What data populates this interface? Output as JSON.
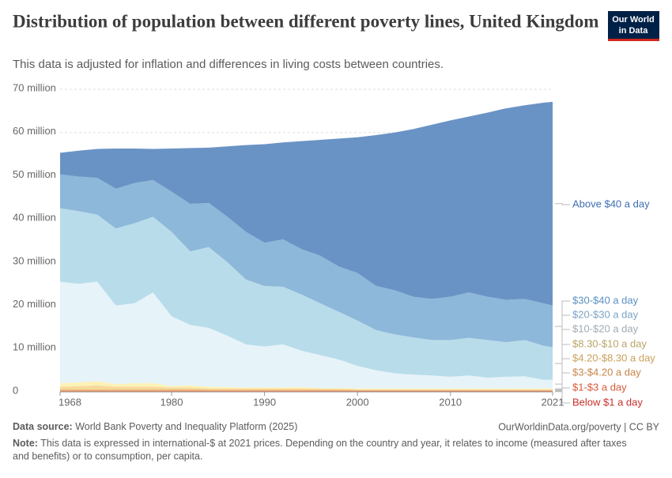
{
  "chart_data": {
    "type": "stacked-area",
    "title": "Distribution of population between different poverty lines, United Kingdom",
    "subtitle": "This data is adjusted for inflation and differences in living costs between countries.",
    "logo": [
      "Our World",
      "in Data"
    ],
    "source_label": "Data source:",
    "source": "World Bank Poverty and Inequality Platform (2025)",
    "url": "OurWorldinData.org/poverty | CC BY",
    "note_label": "Note:",
    "note": [
      "This data is expressed in international-$ at 2021 prices. Depending on the country and year, it relates to income (measured after taxes",
      "and benefits) or to consumption, per capita."
    ],
    "x": [
      1968,
      1970,
      1972,
      1974,
      1976,
      1978,
      1980,
      1982,
      1984,
      1986,
      1988,
      1990,
      1992,
      1994,
      1996,
      1998,
      2000,
      2002,
      2004,
      2006,
      2008,
      2010,
      2012,
      2014,
      2016,
      2018,
      2020,
      2021
    ],
    "xlim": [
      1968,
      2021
    ],
    "xticks": [
      1968,
      1980,
      1990,
      2000,
      2010,
      2021
    ],
    "ylim": [
      0,
      70
    ],
    "yticks": [
      {
        "value": 0,
        "label": "0"
      },
      {
        "value": 10,
        "label": "10 million"
      },
      {
        "value": 20,
        "label": "20 million"
      },
      {
        "value": 30,
        "label": "30 million"
      },
      {
        "value": 40,
        "label": "40 million"
      },
      {
        "value": 50,
        "label": "50 million"
      },
      {
        "value": 60,
        "label": "60 million"
      },
      {
        "value": 70,
        "label": "70 million"
      }
    ],
    "grid": true,
    "series": [
      {
        "name": "Below $1 a day",
        "color": "#d3402c",
        "label_color": "#c8302a",
        "values": [
          0.1,
          0.1,
          0.1,
          0.1,
          0.1,
          0.1,
          0.1,
          0.1,
          0.1,
          0.1,
          0.1,
          0.1,
          0.1,
          0.1,
          0.1,
          0.1,
          0.1,
          0.1,
          0.1,
          0.1,
          0.1,
          0.1,
          0.1,
          0.1,
          0.1,
          0.1,
          0.1,
          0.1
        ]
      },
      {
        "name": "$1-$3 a day",
        "color": "#e8845a",
        "label_color": "#d85a3a",
        "values": [
          0.2,
          0.2,
          0.2,
          0.2,
          0.2,
          0.2,
          0.2,
          0.2,
          0.2,
          0.2,
          0.2,
          0.2,
          0.2,
          0.2,
          0.2,
          0.2,
          0.2,
          0.2,
          0.2,
          0.2,
          0.2,
          0.2,
          0.2,
          0.2,
          0.2,
          0.2,
          0.2,
          0.2
        ]
      },
      {
        "name": "$3-$4.20 a day",
        "color": "#f0b777",
        "label_color": "#c8864a",
        "values": [
          0.3,
          0.3,
          0.3,
          0.3,
          0.3,
          0.3,
          0.3,
          0.3,
          0.2,
          0.2,
          0.2,
          0.2,
          0.2,
          0.2,
          0.2,
          0.2,
          0.1,
          0.1,
          0.1,
          0.1,
          0.1,
          0.1,
          0.1,
          0.1,
          0.1,
          0.1,
          0.1,
          0.1
        ]
      },
      {
        "name": "$4.20-$8.30 a day",
        "color": "#f6d99a",
        "label_color": "#c9a15a",
        "values": [
          0.6,
          0.7,
          0.9,
          0.6,
          0.6,
          0.6,
          0.4,
          0.4,
          0.3,
          0.3,
          0.3,
          0.3,
          0.3,
          0.3,
          0.2,
          0.2,
          0.2,
          0.2,
          0.2,
          0.2,
          0.2,
          0.2,
          0.2,
          0.2,
          0.2,
          0.2,
          0.2,
          0.2
        ]
      },
      {
        "name": "$8.30-$10 a day",
        "color": "#fdf2b6",
        "label_color": "#b8a568",
        "values": [
          0.8,
          0.9,
          1.0,
          0.6,
          0.8,
          0.8,
          0.3,
          0.5,
          0.4,
          0.3,
          0.2,
          0.2,
          0.2,
          0.3,
          0.2,
          0.2,
          0.2,
          0.2,
          0.2,
          0.2,
          0.2,
          0.2,
          0.2,
          0.2,
          0.2,
          0.2,
          0.2,
          0.2
        ]
      },
      {
        "name": "$10-$20 a day",
        "color": "#e6f3f9",
        "label_color": "#a0aab3",
        "values": [
          23.5,
          22.8,
          23.0,
          18.2,
          18.5,
          21.0,
          16.2,
          14.0,
          13.6,
          11.9,
          10.0,
          9.5,
          10.0,
          8.4,
          7.6,
          6.6,
          5.2,
          4.2,
          3.5,
          3.2,
          3.0,
          2.7,
          3.0,
          2.5,
          2.7,
          2.8,
          2.0,
          2.0
        ]
      },
      {
        "name": "$20-$30 a day",
        "color": "#b8dcea",
        "label_color": "#7ba3c6",
        "values": [
          17.0,
          16.8,
          15.5,
          17.8,
          18.5,
          17.5,
          19.5,
          17.0,
          18.7,
          17.0,
          15.0,
          14.0,
          13.3,
          13.0,
          12.0,
          11.0,
          10.5,
          9.3,
          9.0,
          8.6,
          8.2,
          8.5,
          8.7,
          8.7,
          8.0,
          8.4,
          7.9,
          7.5
        ]
      },
      {
        "name": "$30-$40 a day",
        "color": "#8db8d9",
        "label_color": "#5a8fc0",
        "values": [
          7.8,
          8.0,
          8.5,
          9.2,
          9.3,
          8.5,
          9.3,
          11.0,
          10.2,
          10.5,
          11.0,
          10.0,
          11.0,
          10.5,
          11.0,
          10.5,
          11.0,
          10.2,
          10.2,
          9.4,
          9.5,
          10.0,
          10.5,
          10.0,
          9.8,
          9.5,
          9.8,
          9.7
        ]
      },
      {
        "name": "Above $40 a day",
        "color": "#6a93c5",
        "label_color": "#3f6fb0",
        "values": [
          5.0,
          6.0,
          6.7,
          9.3,
          8.0,
          7.2,
          10.0,
          12.9,
          12.8,
          16.3,
          20.1,
          22.8,
          22.4,
          25.0,
          26.8,
          29.6,
          31.4,
          34.9,
          36.5,
          38.8,
          40.3,
          40.8,
          40.7,
          42.6,
          44.3,
          44.8,
          46.4,
          47.1
        ]
      }
    ]
  }
}
